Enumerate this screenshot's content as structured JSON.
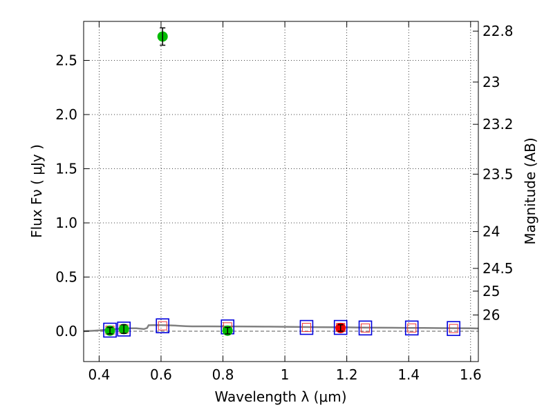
{
  "chart_data": {
    "type": "scatter",
    "xlabel": "Wavelength  λ (μm)",
    "ylabel": "Flux  Fν  ( μJy )",
    "y2label": "Magnitude (AB)",
    "xlim": [
      0.35,
      1.625
    ],
    "ylim": [
      -0.28,
      2.86
    ],
    "x_ticks": [
      {
        "value": 0.4,
        "label": "0.4"
      },
      {
        "value": 0.6,
        "label": "0.6"
      },
      {
        "value": 0.8,
        "label": "0.8"
      },
      {
        "value": 1.0,
        "label": "1"
      },
      {
        "value": 1.2,
        "label": "1.2"
      },
      {
        "value": 1.4,
        "label": "1.4"
      },
      {
        "value": 1.6,
        "label": "1.6"
      }
    ],
    "y_ticks": [
      {
        "value": 0.0,
        "label": "0.0"
      },
      {
        "value": 0.5,
        "label": "0.5"
      },
      {
        "value": 1.0,
        "label": "1.0"
      },
      {
        "value": 1.5,
        "label": "1.5"
      },
      {
        "value": 2.0,
        "label": "2.0"
      },
      {
        "value": 2.5,
        "label": "2.5"
      }
    ],
    "magnitude_ticks": [
      {
        "flux": 2.77,
        "label": "22.8"
      },
      {
        "flux": 2.3,
        "label": "23"
      },
      {
        "flux": 1.91,
        "label": "23.2"
      },
      {
        "flux": 1.45,
        "label": "23.5"
      },
      {
        "flux": 0.92,
        "label": "24"
      },
      {
        "flux": 0.58,
        "label": "24.5"
      },
      {
        "flux": 0.37,
        "label": "25"
      },
      {
        "flux": 0.15,
        "label": "26"
      }
    ],
    "grid": true,
    "dashed_zero_line": true,
    "colors": {
      "detection": "#00bb00",
      "highlight": "#ee0000",
      "model_box": "#0000dd",
      "model_box_inner": "#ee3333",
      "model_sed": "#808080"
    },
    "model_sed": {
      "x": [
        0.35,
        0.38,
        0.4,
        0.42,
        0.44,
        0.46,
        0.48,
        0.5,
        0.52,
        0.545,
        0.555,
        0.56,
        0.58,
        0.6,
        0.62,
        0.64,
        0.66,
        0.68,
        0.7,
        0.75,
        0.8,
        0.85,
        0.9,
        0.95,
        1.0,
        1.05,
        1.1,
        1.15,
        1.2,
        1.25,
        1.3,
        1.35,
        1.4,
        1.45,
        1.5,
        1.55,
        1.6,
        1.625
      ],
      "y": [
        0.0,
        0.004,
        0.008,
        0.013,
        0.018,
        0.022,
        0.025,
        0.027,
        0.027,
        0.02,
        0.03,
        0.055,
        0.057,
        0.056,
        0.055,
        0.053,
        0.05,
        0.047,
        0.045,
        0.045,
        0.044,
        0.044,
        0.043,
        0.042,
        0.041,
        0.039,
        0.038,
        0.037,
        0.036,
        0.034,
        0.033,
        0.032,
        0.031,
        0.03,
        0.029,
        0.028,
        0.027,
        0.026
      ]
    },
    "model_points": [
      {
        "x": 0.435,
        "y": 0.01
      },
      {
        "x": 0.48,
        "y": 0.02
      },
      {
        "x": 0.605,
        "y": 0.05
      },
      {
        "x": 0.815,
        "y": 0.04
      },
      {
        "x": 1.07,
        "y": 0.035
      },
      {
        "x": 1.18,
        "y": 0.035
      },
      {
        "x": 1.26,
        "y": 0.03
      },
      {
        "x": 1.41,
        "y": 0.03
      },
      {
        "x": 1.545,
        "y": 0.025
      }
    ],
    "observed_points": [
      {
        "x": 0.435,
        "y": 0.005,
        "err": 0.03,
        "color": "detection"
      },
      {
        "x": 0.48,
        "y": 0.02,
        "err": 0.04,
        "color": "detection"
      },
      {
        "x": 0.605,
        "y": 2.72,
        "err": 0.08,
        "color": "detection"
      },
      {
        "x": 0.815,
        "y": 0.005,
        "err": 0.03,
        "color": "detection"
      },
      {
        "x": 1.18,
        "y": 0.03,
        "err": 0.03,
        "color": "highlight"
      }
    ]
  }
}
